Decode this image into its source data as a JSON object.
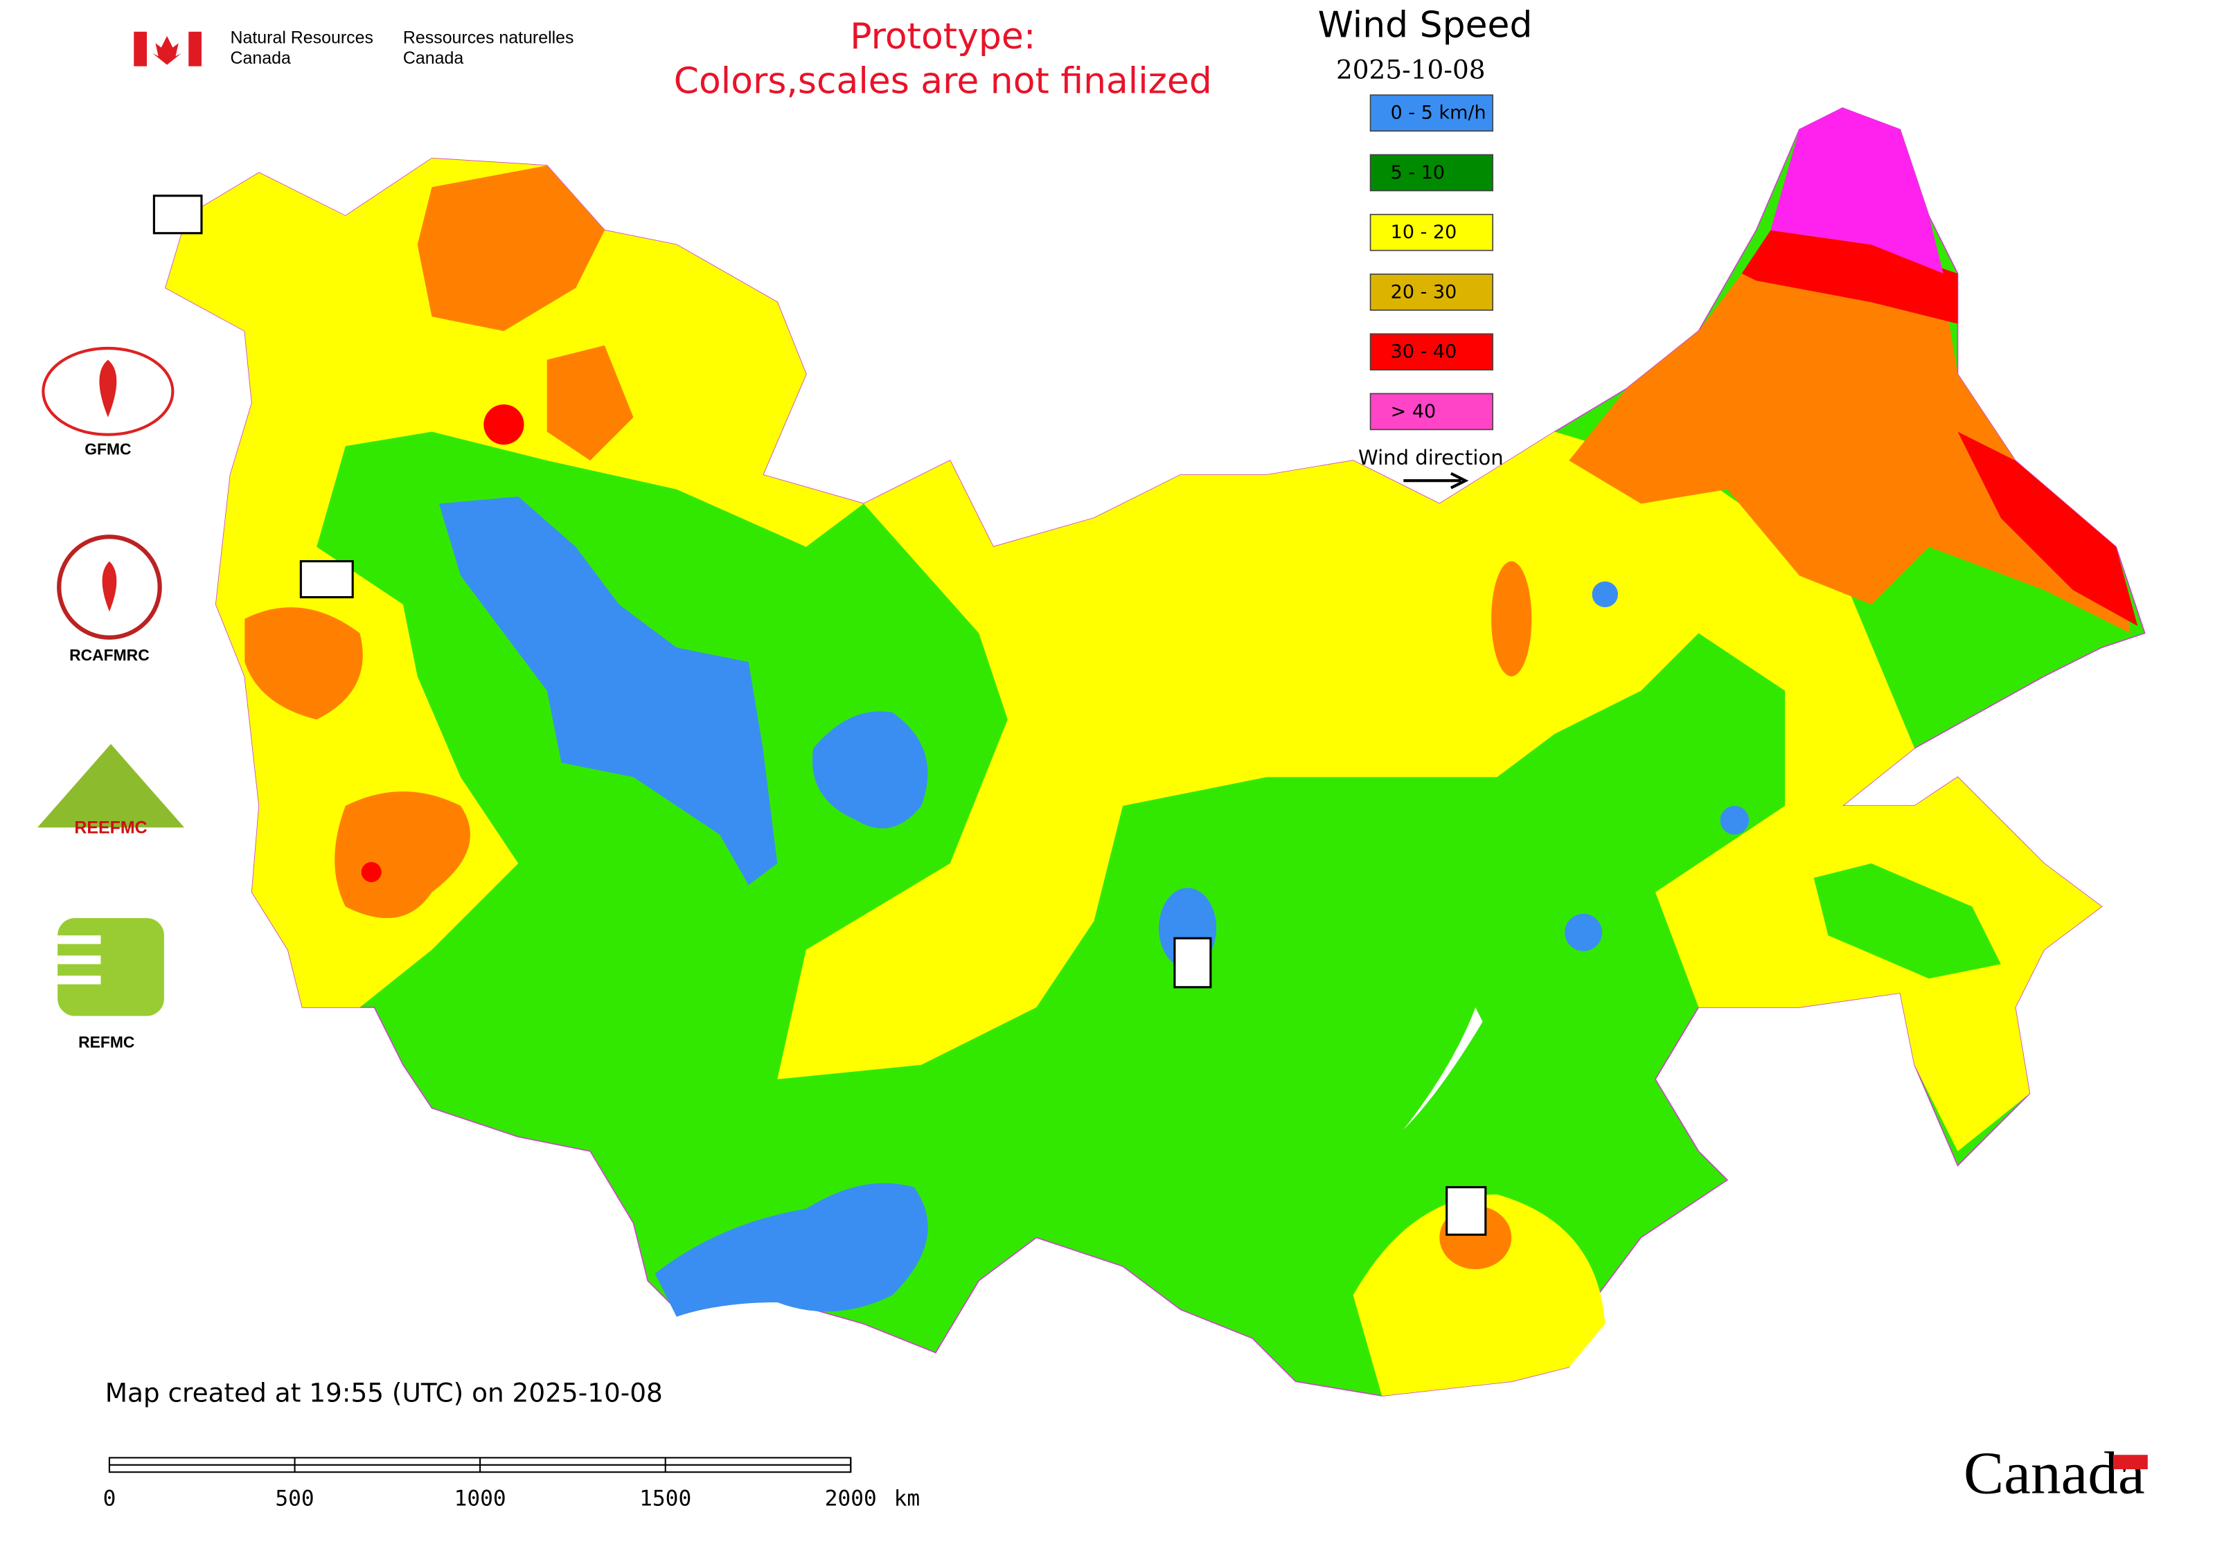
{
  "header": {
    "dept_en": [
      "Natural Resources",
      "Canada"
    ],
    "dept_fr": [
      "Ressources naturelles",
      "Canada"
    ]
  },
  "notice": [
    "Prototype:",
    "Colors,scales are not finalized"
  ],
  "legend": {
    "title": "Wind Speed",
    "date": "2025-10-08",
    "items": [
      {
        "label": "0 - 5 km/h",
        "color": "#3a8ef2"
      },
      {
        "label": "5 - 10",
        "color": "#008a00"
      },
      {
        "label": "10 - 20",
        "color": "#ffff00"
      },
      {
        "label": "20 - 30",
        "color": "#dcb400"
      },
      {
        "label": "30 - 40",
        "color": "#ff0000"
      },
      {
        "label": "> 40",
        "color": "#ff44c8"
      }
    ],
    "direction_label": "Wind direction"
  },
  "logos": {
    "gfmc": "GFMC",
    "rcafmrc": "RCAFMRC",
    "reefmc": "REEFMC",
    "refmc": "REFMC"
  },
  "footer": {
    "created": "Map created at 19:55 (UTC) on 2025-10-08",
    "scale": {
      "ticks": [
        "0",
        "500",
        "1000",
        "1500",
        "2000"
      ],
      "unit": "km"
    },
    "wordmark": "Canada"
  }
}
